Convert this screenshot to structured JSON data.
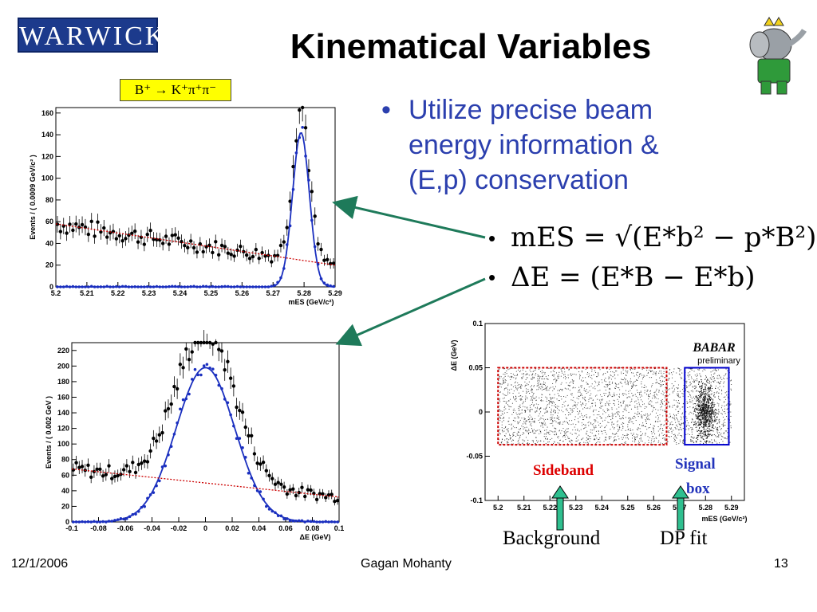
{
  "header": {
    "logo_text": "WARWICK",
    "title": "Kinematical Variables"
  },
  "decay_label": "B⁺ → K⁺π⁺π⁻",
  "bullets": [
    "Utilize precise beam",
    "energy information &",
    "(E,p) conservation"
  ],
  "formulas": {
    "mes": "mES = √(E*b² − p*B²)",
    "de": "ΔE = (E*B − E*b)"
  },
  "chart_data": [
    {
      "type": "scatter",
      "xlabel": "mES (GeV/c²)",
      "ylabel": "Events / ( 0.0009 GeV/c² )",
      "xlim": [
        5.2,
        5.29
      ],
      "ylim": [
        0,
        165
      ],
      "x_ticks": [
        "5.2",
        "5.21",
        "5.22",
        "5.23",
        "5.24",
        "5.25",
        "5.26",
        "5.27",
        "5.28",
        "5.29"
      ],
      "y_ticks": [
        "0",
        "20",
        "40",
        "60",
        "80",
        "100",
        "120",
        "140",
        "160"
      ],
      "signal_peak": {
        "mean": 5.279,
        "sigma": 0.0027,
        "amplitude": 142
      },
      "background": {
        "description": "ARGUS-like",
        "start": 58,
        "end": 20
      }
    },
    {
      "type": "scatter",
      "xlabel": "ΔE (GeV)",
      "ylabel": "Events / ( 0.002 GeV )",
      "xlim": [
        -0.1,
        0.1
      ],
      "ylim": [
        0,
        230
      ],
      "x_ticks": [
        "-0.1",
        "-0.08",
        "-0.06",
        "-0.04",
        "-0.02",
        "0",
        "0.02",
        "0.04",
        "0.06",
        "0.08",
        "0.1"
      ],
      "y_ticks": [
        "0",
        "20",
        "40",
        "60",
        "80",
        "100",
        "120",
        "140",
        "160",
        "180",
        "200",
        "220"
      ],
      "signal_peak": {
        "mean": 0.0,
        "sigma": 0.022,
        "amplitude": 198
      },
      "background": {
        "description": "linear",
        "start": 68,
        "end": 32
      }
    },
    {
      "type": "scatter",
      "xlabel": "mES (GeV/c²)",
      "ylabel": "ΔE (GeV)",
      "xlim": [
        5.195,
        5.295
      ],
      "ylim": [
        -0.1,
        0.1
      ],
      "x_ticks": [
        "5.2",
        "5.21",
        "5.22",
        "5.23",
        "5.24",
        "5.25",
        "5.26",
        "5.27",
        "5.28",
        "5.29"
      ],
      "y_ticks": [
        "-0.1",
        "-0.05",
        "0",
        "0.05",
        "0.1"
      ],
      "regions": [
        {
          "name": "Sideband",
          "xrange": [
            5.2,
            5.265
          ],
          "yrange": [
            -0.037,
            0.05
          ],
          "color": "#cc0000"
        },
        {
          "name": "Signal box",
          "xrange": [
            5.272,
            5.289
          ],
          "yrange": [
            -0.037,
            0.05
          ],
          "color": "#0000cc"
        }
      ],
      "experiment": "BABAR",
      "status": "preliminary"
    }
  ],
  "labels": {
    "sideband": "Sideband",
    "signal": "Signal",
    "box": "box",
    "background": "Background",
    "dpfit": "DP fit"
  },
  "footer": {
    "date": "12/1/2006",
    "author": "Gagan Mohanty",
    "page": "13"
  },
  "colors": {
    "accent_text": "#2b3fae",
    "arrow": "#1e7a5a",
    "fit_line": "#1a2fbf",
    "background_fit": "#cc0000"
  }
}
